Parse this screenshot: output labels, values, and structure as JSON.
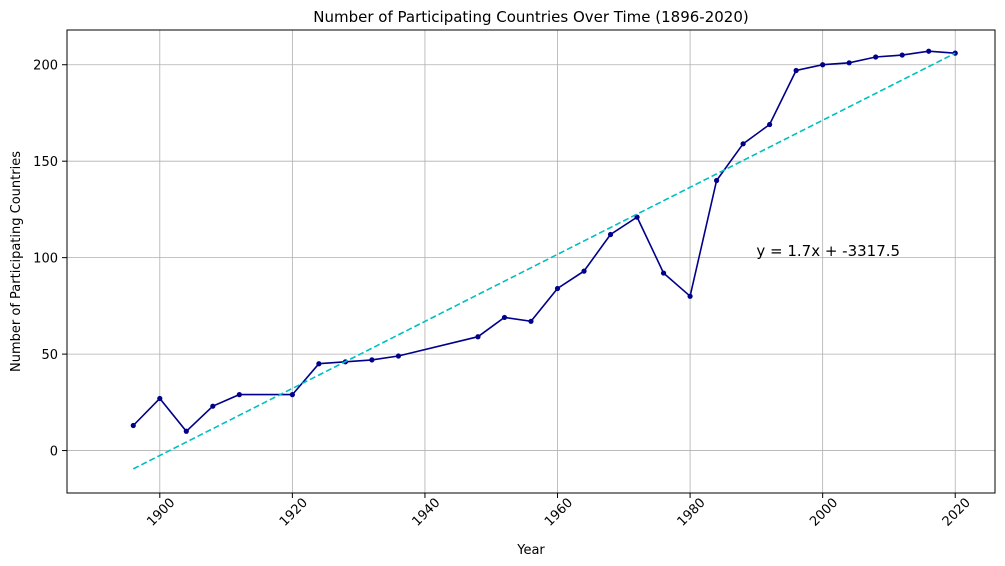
{
  "chart_data": {
    "type": "line",
    "title": "Number of Participating Countries Over Time (1896-2020)",
    "xlabel": "Year",
    "ylabel": "Number of Participating Countries",
    "xlim": [
      1886,
      2026
    ],
    "ylim": [
      -22,
      218
    ],
    "x_ticks": [
      1900,
      1920,
      1940,
      1960,
      1980,
      2000,
      2020
    ],
    "y_ticks": [
      0,
      50,
      100,
      150,
      200
    ],
    "grid": true,
    "series": [
      {
        "style": "solid line with dot markers",
        "color": "#00008b",
        "x": [
          1896,
          1900,
          1904,
          1908,
          1912,
          1920,
          1924,
          1928,
          1932,
          1936,
          1948,
          1952,
          1956,
          1960,
          1964,
          1968,
          1972,
          1976,
          1980,
          1984,
          1988,
          1992,
          1996,
          2000,
          2004,
          2008,
          2012,
          2016,
          2020
        ],
        "y": [
          13,
          27,
          10,
          23,
          29,
          29,
          45,
          46,
          47,
          49,
          59,
          69,
          67,
          84,
          93,
          112,
          121,
          92,
          80,
          140,
          159,
          169,
          197,
          200,
          201,
          204,
          205,
          207,
          206
        ]
      },
      {
        "style": "dashed trend line",
        "color": "#00bfbf",
        "x": [
          1896,
          2020
        ],
        "y": [
          -9.5,
          206
        ]
      }
    ],
    "annotation": {
      "text": "y = 1.7x + -3317.5",
      "x": 1990,
      "y": 103
    }
  }
}
